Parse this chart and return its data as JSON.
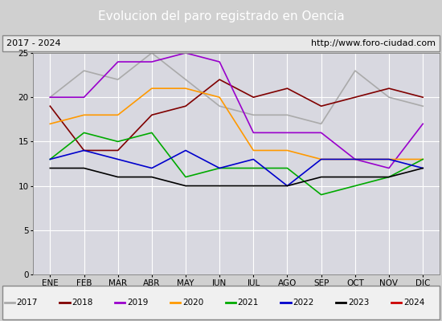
{
  "title": "Evolucion del paro registrado en Oencia",
  "subtitle_left": "2017 - 2024",
  "subtitle_right": "http://www.foro-ciudad.com",
  "months": [
    "ENE",
    "FEB",
    "MAR",
    "ABR",
    "MAY",
    "JUN",
    "JUL",
    "AGO",
    "SEP",
    "OCT",
    "NOV",
    "DIC"
  ],
  "series": [
    {
      "label": "2017",
      "color": "#aaaaaa",
      "data": [
        20,
        23,
        22,
        25,
        22,
        19,
        18,
        18,
        17,
        23,
        20,
        19
      ]
    },
    {
      "label": "2018",
      "color": "#800000",
      "data": [
        19,
        14,
        14,
        18,
        19,
        22,
        20,
        21,
        19,
        20,
        21,
        20
      ]
    },
    {
      "label": "2019",
      "color": "#9900cc",
      "data": [
        20,
        20,
        24,
        24,
        25,
        24,
        16,
        16,
        16,
        13,
        12,
        17
      ]
    },
    {
      "label": "2020",
      "color": "#ff9900",
      "data": [
        17,
        18,
        18,
        21,
        21,
        20,
        14,
        14,
        13,
        13,
        13,
        13
      ]
    },
    {
      "label": "2021",
      "color": "#00aa00",
      "data": [
        13,
        16,
        15,
        16,
        11,
        12,
        12,
        12,
        9,
        10,
        11,
        13
      ]
    },
    {
      "label": "2022",
      "color": "#0000cc",
      "data": [
        13,
        14,
        13,
        12,
        14,
        12,
        13,
        10,
        13,
        13,
        13,
        12
      ]
    },
    {
      "label": "2023",
      "color": "#000000",
      "data": [
        12,
        12,
        11,
        11,
        10,
        10,
        10,
        10,
        11,
        11,
        11,
        12
      ]
    },
    {
      "label": "2024",
      "color": "#cc0000",
      "data": [
        12,
        null,
        null,
        null,
        null,
        null,
        null,
        null,
        null,
        null,
        null,
        null
      ]
    }
  ],
  "ylim": [
    0,
    25
  ],
  "yticks": [
    0,
    5,
    10,
    15,
    20,
    25
  ],
  "outer_bg": "#d0d0d0",
  "plot_bg_color": "#d8d8e0",
  "title_bg_color": "#4f7fc0",
  "title_color": "#ffffff",
  "grid_color": "#ffffff",
  "legend_bg": "#f0f0f0",
  "subtitle_bg": "#e8e8e8"
}
